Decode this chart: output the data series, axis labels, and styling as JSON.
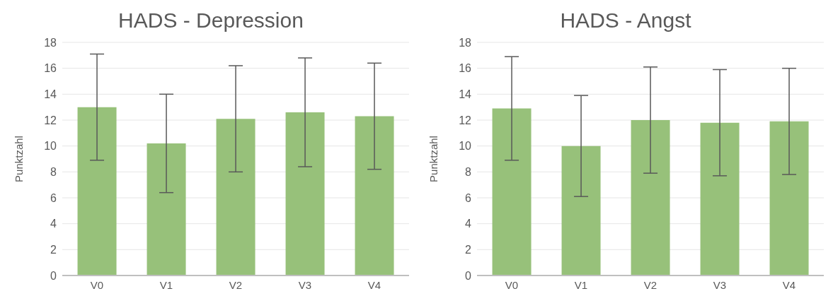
{
  "chart_data": [
    {
      "type": "bar",
      "title": "HADS - Depression",
      "ylabel": "Punktzahl",
      "categories": [
        "V0",
        "V1",
        "V2",
        "V3",
        "V4"
      ],
      "values": [
        13.0,
        10.2,
        12.1,
        12.6,
        12.3
      ],
      "errors": [
        4.1,
        3.8,
        4.1,
        4.2,
        4.1
      ],
      "color": "#97c17a",
      "ylim": [
        0,
        18
      ],
      "yticks": [
        0,
        2,
        4,
        6,
        8,
        10,
        12,
        14,
        16,
        18
      ],
      "grid": "y",
      "legend": false
    },
    {
      "type": "bar",
      "title": "HADS - Angst",
      "ylabel": "Punktzahl",
      "categories": [
        "V0",
        "V1",
        "V2",
        "V3",
        "V4"
      ],
      "values": [
        12.9,
        10.0,
        12.0,
        11.8,
        11.9
      ],
      "errors": [
        4.0,
        3.9,
        4.1,
        4.1,
        4.1
      ],
      "color": "#97c17a",
      "ylim": [
        0,
        18
      ],
      "yticks": [
        0,
        2,
        4,
        6,
        8,
        10,
        12,
        14,
        16,
        18
      ],
      "grid": "y",
      "legend": false
    }
  ]
}
